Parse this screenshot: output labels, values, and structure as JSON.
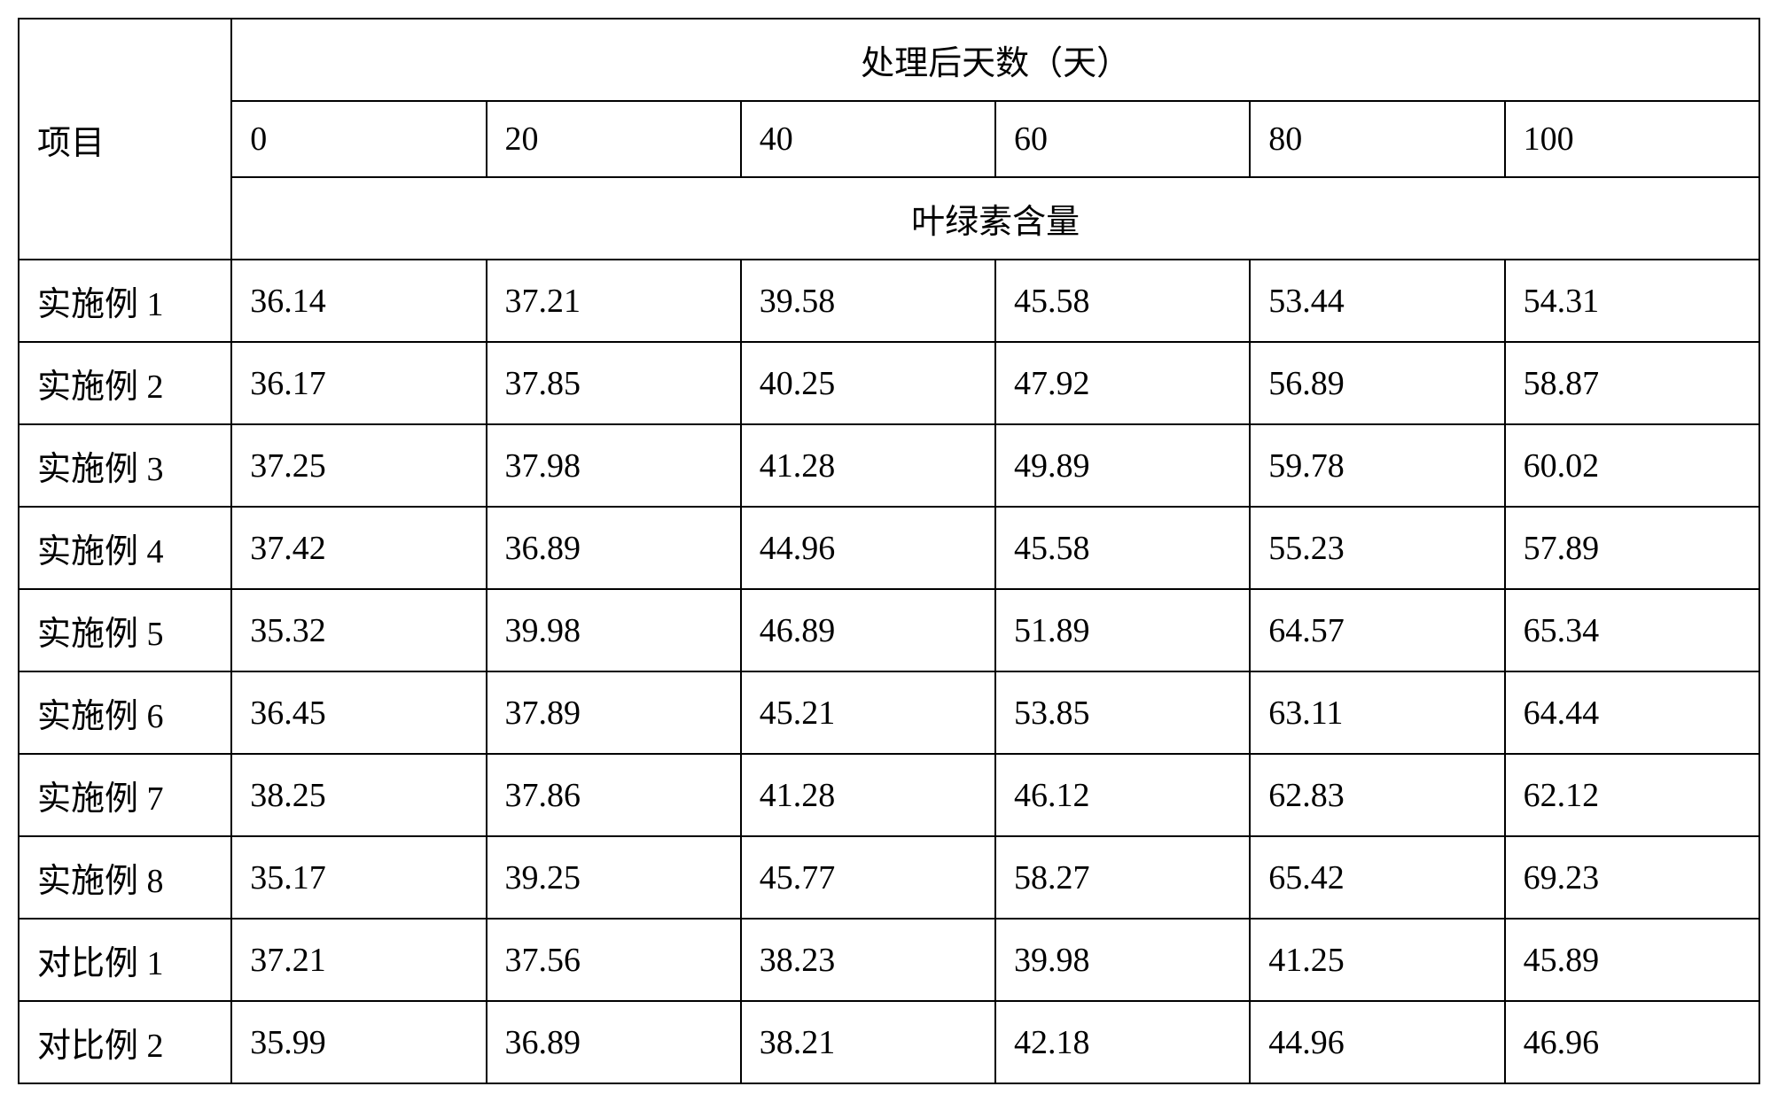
{
  "table": {
    "row_label_header": "项目",
    "super_header": "处理后天数（天）",
    "sub_header": "叶绿素含量",
    "columns": [
      "0",
      "20",
      "40",
      "60",
      "80",
      "100"
    ],
    "rows": [
      {
        "label": "实施例 1",
        "values": [
          "36.14",
          "37.21",
          "39.58",
          "45.58",
          "53.44",
          "54.31"
        ]
      },
      {
        "label": "实施例 2",
        "values": [
          "36.17",
          "37.85",
          "40.25",
          "47.92",
          "56.89",
          "58.87"
        ]
      },
      {
        "label": "实施例 3",
        "values": [
          "37.25",
          "37.98",
          "41.28",
          "49.89",
          "59.78",
          "60.02"
        ]
      },
      {
        "label": "实施例 4",
        "values": [
          "37.42",
          "36.89",
          "44.96",
          "45.58",
          "55.23",
          "57.89"
        ]
      },
      {
        "label": "实施例 5",
        "values": [
          "35.32",
          "39.98",
          "46.89",
          "51.89",
          "64.57",
          "65.34"
        ]
      },
      {
        "label": "实施例 6",
        "values": [
          "36.45",
          "37.89",
          "45.21",
          "53.85",
          "63.11",
          "64.44"
        ]
      },
      {
        "label": "实施例 7",
        "values": [
          "38.25",
          "37.86",
          "41.28",
          "46.12",
          "62.83",
          "62.12"
        ]
      },
      {
        "label": "实施例 8",
        "values": [
          "35.17",
          "39.25",
          "45.77",
          "58.27",
          "65.42",
          "69.23"
        ]
      },
      {
        "label": "对比例 1",
        "values": [
          "37.21",
          "37.56",
          "38.23",
          "39.98",
          "41.25",
          "45.89"
        ]
      },
      {
        "label": "对比例 2",
        "values": [
          "35.99",
          "36.89",
          "38.21",
          "42.18",
          "44.96",
          "46.96"
        ]
      }
    ],
    "border_color": "#000000",
    "background_color": "#ffffff",
    "font_size": 38,
    "cell_align": "left",
    "header_align": "center",
    "column_widths": {
      "first": 240,
      "data": 287
    }
  }
}
